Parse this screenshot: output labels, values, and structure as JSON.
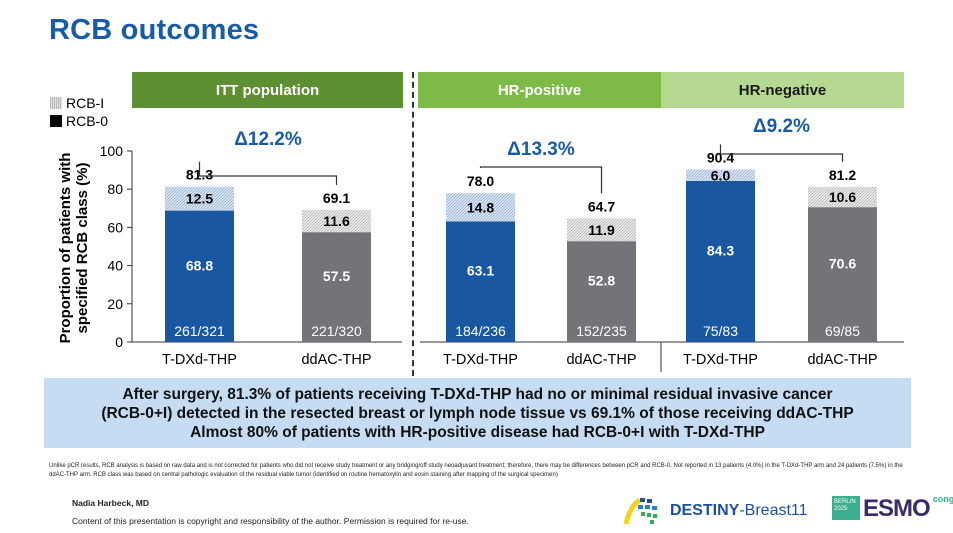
{
  "slide": {
    "title": "RCB outcomes"
  },
  "legend": {
    "items": [
      {
        "label": "RCB-I",
        "icon": "hatched-swatch-icon"
      },
      {
        "label": "RCB-0",
        "icon": "solid-swatch-icon"
      }
    ]
  },
  "panels": {
    "itt": "ITT population",
    "hr_positive": "HR-positive",
    "hr_negative": "HR-negative"
  },
  "colors": {
    "t_dxd": "#1957a0",
    "ddac": "#747478",
    "delta_text": "#1a5ba8",
    "itt_header": "#5f8f33",
    "hrp_header": "#7dbb46",
    "hrn_header": "#b5d990",
    "summary_bg": "#c5dcf3"
  },
  "chart_data": {
    "type": "bar",
    "stacked": true,
    "ylabel": "Proportion of patients with specified RCB class (%)",
    "xlabel": "",
    "ylim": [
      0,
      100
    ],
    "yticks": [
      0,
      20,
      40,
      60,
      80,
      100
    ],
    "legend_position": "top-left",
    "grid": false,
    "groups": [
      {
        "name": "ITT population",
        "delta": "Δ12.2%",
        "bars": [
          {
            "category": "T-DXd-THP",
            "rcb0": 68.8,
            "rcb1": 12.5,
            "total": 81.3,
            "n": "261/321",
            "arm": "t_dxd"
          },
          {
            "category": "ddAC-THP",
            "rcb0": 57.5,
            "rcb1": 11.6,
            "total": 69.1,
            "n": "221/320",
            "arm": "ddac"
          }
        ]
      },
      {
        "name": "HR-positive",
        "delta": "Δ13.3%",
        "bars": [
          {
            "category": "T-DXd-THP",
            "rcb0": 63.1,
            "rcb1": 14.8,
            "total": 78.0,
            "n": "184/236",
            "arm": "t_dxd"
          },
          {
            "category": "ddAC-THP",
            "rcb0": 52.8,
            "rcb1": 11.9,
            "total": 64.7,
            "n": "152/235",
            "arm": "ddac"
          }
        ]
      },
      {
        "name": "HR-negative",
        "delta": "Δ9.2%",
        "bars": [
          {
            "category": "T-DXd-THP",
            "rcb0": 84.3,
            "rcb1": 6.0,
            "total": 90.4,
            "n": "75/83",
            "arm": "t_dxd"
          },
          {
            "category": "ddAC-THP",
            "rcb0": 70.6,
            "rcb1": 10.6,
            "total": 81.2,
            "n": "69/85",
            "arm": "ddac"
          }
        ]
      }
    ],
    "series": [
      {
        "name": "RCB-0"
      },
      {
        "name": "RCB-I"
      }
    ]
  },
  "summary": {
    "line1": "After surgery, 81.3% of patients receiving T-DXd-THP had no or minimal residual invasive cancer",
    "line2": "(RCB-0+I) detected in the resected breast or lymph node tissue vs 69.1% of those receiving ddAC-THP",
    "line3": "Almost 80% of patients with HR-positive disease had RCB-0+I with T-DXd-THP"
  },
  "footnote": "Unlike pCR results, RCB analysis is based on raw data and is not corrected for patients who did not receive study treatment or any bridging/off study neoadjuvant treatment; therefore, there may be differences between pCR and RCB-0. Not reported in 13 patients (4.0%) in the T-DXd-THP arm and 24 patients (7.5%) in the ddAC-THP arm. RCB class was based on central pathologic evaluation of the residual viable tumor (identified on routine hematoxylin and eosin staining after mapping of the surgical specimen)",
  "footer": {
    "author": "Nadia Harbeck, MD",
    "copyright": "Content of this presentation is copyright and responsibility of the author. Permission is required for re-use.",
    "trial_logo_bold": "DESTINY",
    "trial_logo_rest": "-Breast11",
    "congress_city": "BERLIN 2025",
    "congress_name": "ESMO",
    "congress_suffix": "congress"
  }
}
